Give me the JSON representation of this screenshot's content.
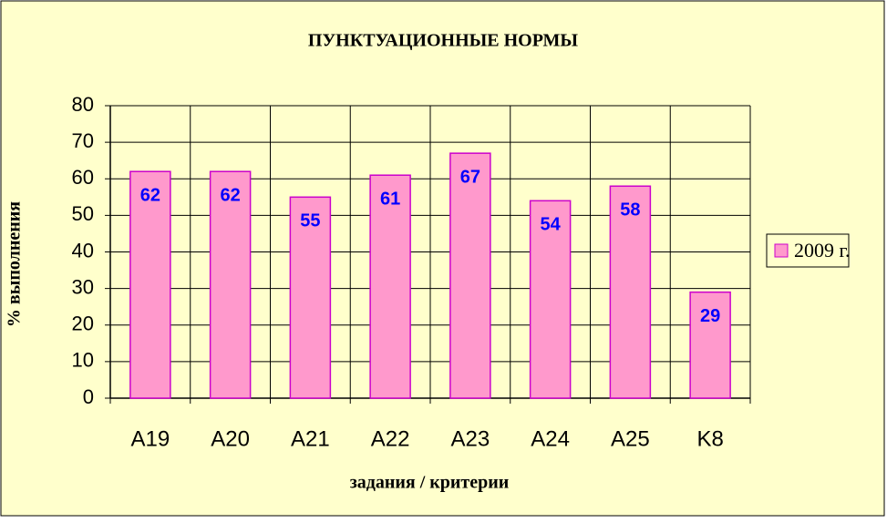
{
  "chart_data": {
    "type": "bar",
    "title": "ПУНКТУАЦИОННЫЕ НОРМЫ",
    "x_label": "задания / критерии",
    "y_label": "% выполнения",
    "categories": [
      "A19",
      "A20",
      "A21",
      "A22",
      "A23",
      "A24",
      "A25",
      "K8"
    ],
    "series": [
      {
        "name": "2009 г.",
        "color": "#ff99cc",
        "values": [
          62,
          62,
          55,
          61,
          67,
          54,
          58,
          29
        ]
      }
    ],
    "ylim": [
      0,
      80
    ],
    "yticks": [
      0,
      10,
      20,
      30,
      40,
      50,
      60,
      70,
      80
    ],
    "grid": true,
    "legend": "right"
  }
}
